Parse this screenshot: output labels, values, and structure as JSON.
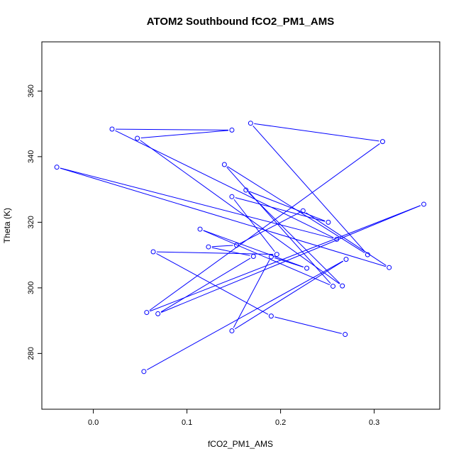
{
  "chart_data": {
    "type": "line",
    "title": "ATOM2 Southbound fCO2_PM1_AMS",
    "xlabel": "fCO2_PM1_AMS",
    "ylabel": "Theta (K)",
    "xlim": [
      -0.055,
      0.37
    ],
    "ylim": [
      263,
      375
    ],
    "x_ticks": [
      0.0,
      0.1,
      0.2,
      0.3
    ],
    "x_tick_labels": [
      "0.0",
      "0.1",
      "0.2",
      "0.3"
    ],
    "y_ticks": [
      280,
      300,
      320,
      340,
      360
    ],
    "y_tick_labels": [
      "280",
      "300",
      "320",
      "340",
      "360"
    ],
    "grid": false,
    "line_color": "#0000ff",
    "marker": "open-circle",
    "series": [
      {
        "x": [
          0.054,
          0.27,
          0.148,
          0.19,
          0.228,
          0.114,
          0.256,
          0.14,
          0.293,
          0.168,
          0.309,
          0.057,
          0.353,
          0.069,
          0.171,
          0.123,
          0.153,
          0.224,
          0.316,
          -0.039,
          0.26,
          0.02,
          0.148,
          0.047,
          0.266,
          0.163,
          0.251,
          0.148,
          0.196,
          0.064,
          0.19,
          0.269
        ],
        "y": [
          274.5,
          308.7,
          286.9,
          309.5,
          306.0,
          317.9,
          300.5,
          337.6,
          310.1,
          350.2,
          344.6,
          292.5,
          325.5,
          292.1,
          309.6,
          312.5,
          313.0,
          323.5,
          306.2,
          336.8,
          314.8,
          348.4,
          348.1,
          345.6,
          300.6,
          329.8,
          320.0,
          327.8,
          310.2,
          311.0,
          291.4,
          285.8
        ]
      }
    ]
  }
}
